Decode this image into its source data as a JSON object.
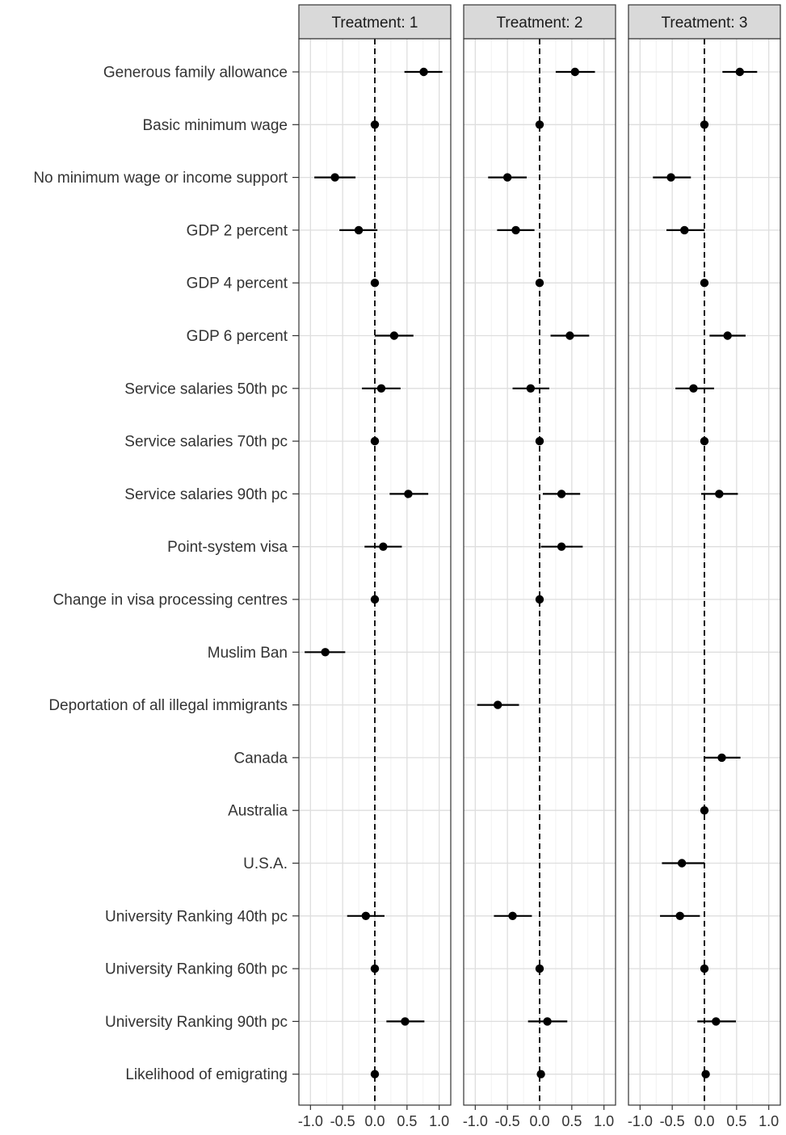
{
  "chart_data": {
    "type": "scatter",
    "title": "",
    "xlabel": "",
    "ylabel": "",
    "xlim": [
      -1.18,
      1.18
    ],
    "x_ticks": [
      -1.0,
      -0.5,
      0.0,
      0.5,
      1.0
    ],
    "x_tick_labels": [
      "-1.0",
      "-0.5",
      "0.0",
      "0.5",
      "1.0"
    ],
    "grid": true,
    "reference_line": 0.0,
    "categories": [
      "Generous family allowance",
      "Basic minimum wage",
      "No minimum wage or income support",
      "GDP 2 percent",
      "GDP 4 percent",
      "GDP 6 percent",
      "Service salaries 50th pc",
      "Service salaries 70th pc",
      "Service salaries 90th pc",
      "Point-system visa",
      "Change in visa processing centres",
      "Muslim Ban",
      "Deportation of all illegal immigrants",
      "Canada",
      "Australia",
      "U.S.A.",
      "University Ranking 40th pc",
      "University Ranking 60th pc",
      "University Ranking 90th pc",
      "Likelihood of emigrating"
    ],
    "panels": [
      {
        "strip": "Treatment: 1",
        "points": [
          {
            "estimate": 0.76,
            "lower": 0.46,
            "upper": 1.05
          },
          {
            "estimate": 0.0,
            "lower": 0.0,
            "upper": 0.0
          },
          {
            "estimate": -0.62,
            "lower": -0.94,
            "upper": -0.3
          },
          {
            "estimate": -0.25,
            "lower": -0.55,
            "upper": 0.04
          },
          {
            "estimate": 0.0,
            "lower": 0.0,
            "upper": 0.0
          },
          {
            "estimate": 0.3,
            "lower": 0.0,
            "upper": 0.6
          },
          {
            "estimate": 0.1,
            "lower": -0.2,
            "upper": 0.4
          },
          {
            "estimate": 0.0,
            "lower": 0.0,
            "upper": 0.0
          },
          {
            "estimate": 0.52,
            "lower": 0.23,
            "upper": 0.83
          },
          {
            "estimate": 0.13,
            "lower": -0.16,
            "upper": 0.42
          },
          {
            "estimate": 0.0,
            "lower": 0.0,
            "upper": 0.0
          },
          {
            "estimate": -0.77,
            "lower": -1.09,
            "upper": -0.46
          },
          null,
          null,
          null,
          null,
          {
            "estimate": -0.14,
            "lower": -0.43,
            "upper": 0.15
          },
          {
            "estimate": 0.0,
            "lower": 0.0,
            "upper": 0.0
          },
          {
            "estimate": 0.47,
            "lower": 0.18,
            "upper": 0.77
          },
          {
            "estimate": 0.0,
            "lower": 0.0,
            "upper": 0.0
          }
        ]
      },
      {
        "strip": "Treatment: 2",
        "points": [
          {
            "estimate": 0.55,
            "lower": 0.25,
            "upper": 0.86
          },
          {
            "estimate": 0.0,
            "lower": 0.0,
            "upper": 0.0
          },
          {
            "estimate": -0.5,
            "lower": -0.8,
            "upper": -0.2
          },
          {
            "estimate": -0.37,
            "lower": -0.66,
            "upper": -0.08
          },
          {
            "estimate": 0.0,
            "lower": 0.0,
            "upper": 0.0
          },
          {
            "estimate": 0.47,
            "lower": 0.17,
            "upper": 0.77
          },
          {
            "estimate": -0.14,
            "lower": -0.42,
            "upper": 0.15
          },
          {
            "estimate": 0.0,
            "lower": 0.0,
            "upper": 0.0
          },
          {
            "estimate": 0.34,
            "lower": 0.05,
            "upper": 0.63
          },
          {
            "estimate": 0.34,
            "lower": 0.02,
            "upper": 0.67
          },
          {
            "estimate": 0.0,
            "lower": 0.0,
            "upper": 0.0
          },
          null,
          {
            "estimate": -0.65,
            "lower": -0.97,
            "upper": -0.32
          },
          null,
          null,
          null,
          {
            "estimate": -0.42,
            "lower": -0.71,
            "upper": -0.12
          },
          {
            "estimate": 0.0,
            "lower": 0.0,
            "upper": 0.0
          },
          {
            "estimate": 0.12,
            "lower": -0.18,
            "upper": 0.43
          },
          {
            "estimate": 0.02,
            "lower": 0.02,
            "upper": 0.02
          }
        ]
      },
      {
        "strip": "Treatment: 3",
        "points": [
          {
            "estimate": 0.55,
            "lower": 0.28,
            "upper": 0.82
          },
          {
            "estimate": 0.0,
            "lower": 0.0,
            "upper": 0.0
          },
          {
            "estimate": -0.52,
            "lower": -0.8,
            "upper": -0.21
          },
          {
            "estimate": -0.31,
            "lower": -0.59,
            "upper": 0.0
          },
          {
            "estimate": 0.0,
            "lower": 0.0,
            "upper": 0.0
          },
          {
            "estimate": 0.36,
            "lower": 0.08,
            "upper": 0.64
          },
          {
            "estimate": -0.17,
            "lower": -0.45,
            "upper": 0.15
          },
          {
            "estimate": 0.0,
            "lower": 0.0,
            "upper": 0.0
          },
          {
            "estimate": 0.23,
            "lower": -0.05,
            "upper": 0.52
          },
          null,
          null,
          null,
          null,
          {
            "estimate": 0.27,
            "lower": 0.0,
            "upper": 0.56
          },
          {
            "estimate": 0.0,
            "lower": 0.0,
            "upper": 0.0
          },
          {
            "estimate": -0.35,
            "lower": -0.66,
            "upper": 0.0
          },
          {
            "estimate": -0.38,
            "lower": -0.69,
            "upper": -0.07
          },
          {
            "estimate": 0.0,
            "lower": 0.0,
            "upper": 0.0
          },
          {
            "estimate": 0.18,
            "lower": -0.11,
            "upper": 0.49
          },
          {
            "estimate": 0.02,
            "lower": 0.02,
            "upper": 0.02
          }
        ]
      }
    ]
  }
}
